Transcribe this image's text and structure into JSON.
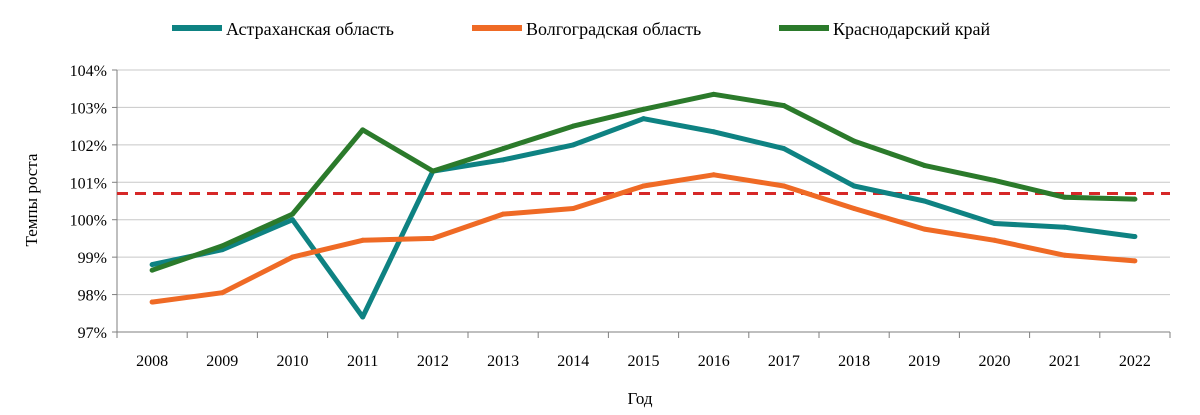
{
  "chart_data": {
    "type": "line",
    "xlabel": "Год",
    "ylabel": "Темпы роста",
    "ylim": [
      97,
      104
    ],
    "y_tick_format": "percent",
    "yticks": [
      "97%",
      "98%",
      "99%",
      "100%",
      "101%",
      "102%",
      "103%",
      "104%"
    ],
    "categories": [
      "2008",
      "2009",
      "2010",
      "2011",
      "2012",
      "2013",
      "2014",
      "2015",
      "2016",
      "2017",
      "2018",
      "2019",
      "2020",
      "2021",
      "2022"
    ],
    "grid": true,
    "legend": "top-center",
    "series": [
      {
        "name": "Астраханская область",
        "color": "#0e8282",
        "values": [
          98.8,
          99.2,
          100.0,
          97.4,
          101.3,
          101.6,
          102.0,
          102.7,
          102.35,
          101.9,
          100.9,
          100.5,
          99.9,
          99.8,
          99.55
        ]
      },
      {
        "name": "Волгоградская область",
        "color": "#ef6a25",
        "values": [
          97.8,
          98.05,
          99.0,
          99.45,
          99.5,
          100.15,
          100.3,
          100.9,
          101.2,
          100.9,
          100.3,
          99.75,
          99.45,
          99.05,
          98.9
        ]
      },
      {
        "name": "Краснодарский край",
        "color": "#2b7a2b",
        "values": [
          98.65,
          99.3,
          100.15,
          102.4,
          101.3,
          101.9,
          102.5,
          102.95,
          103.35,
          103.05,
          102.1,
          101.45,
          101.05,
          100.6,
          100.55
        ]
      }
    ],
    "reference_line": {
      "value": 100.7,
      "color": "#d62828",
      "style": "dashed"
    }
  }
}
